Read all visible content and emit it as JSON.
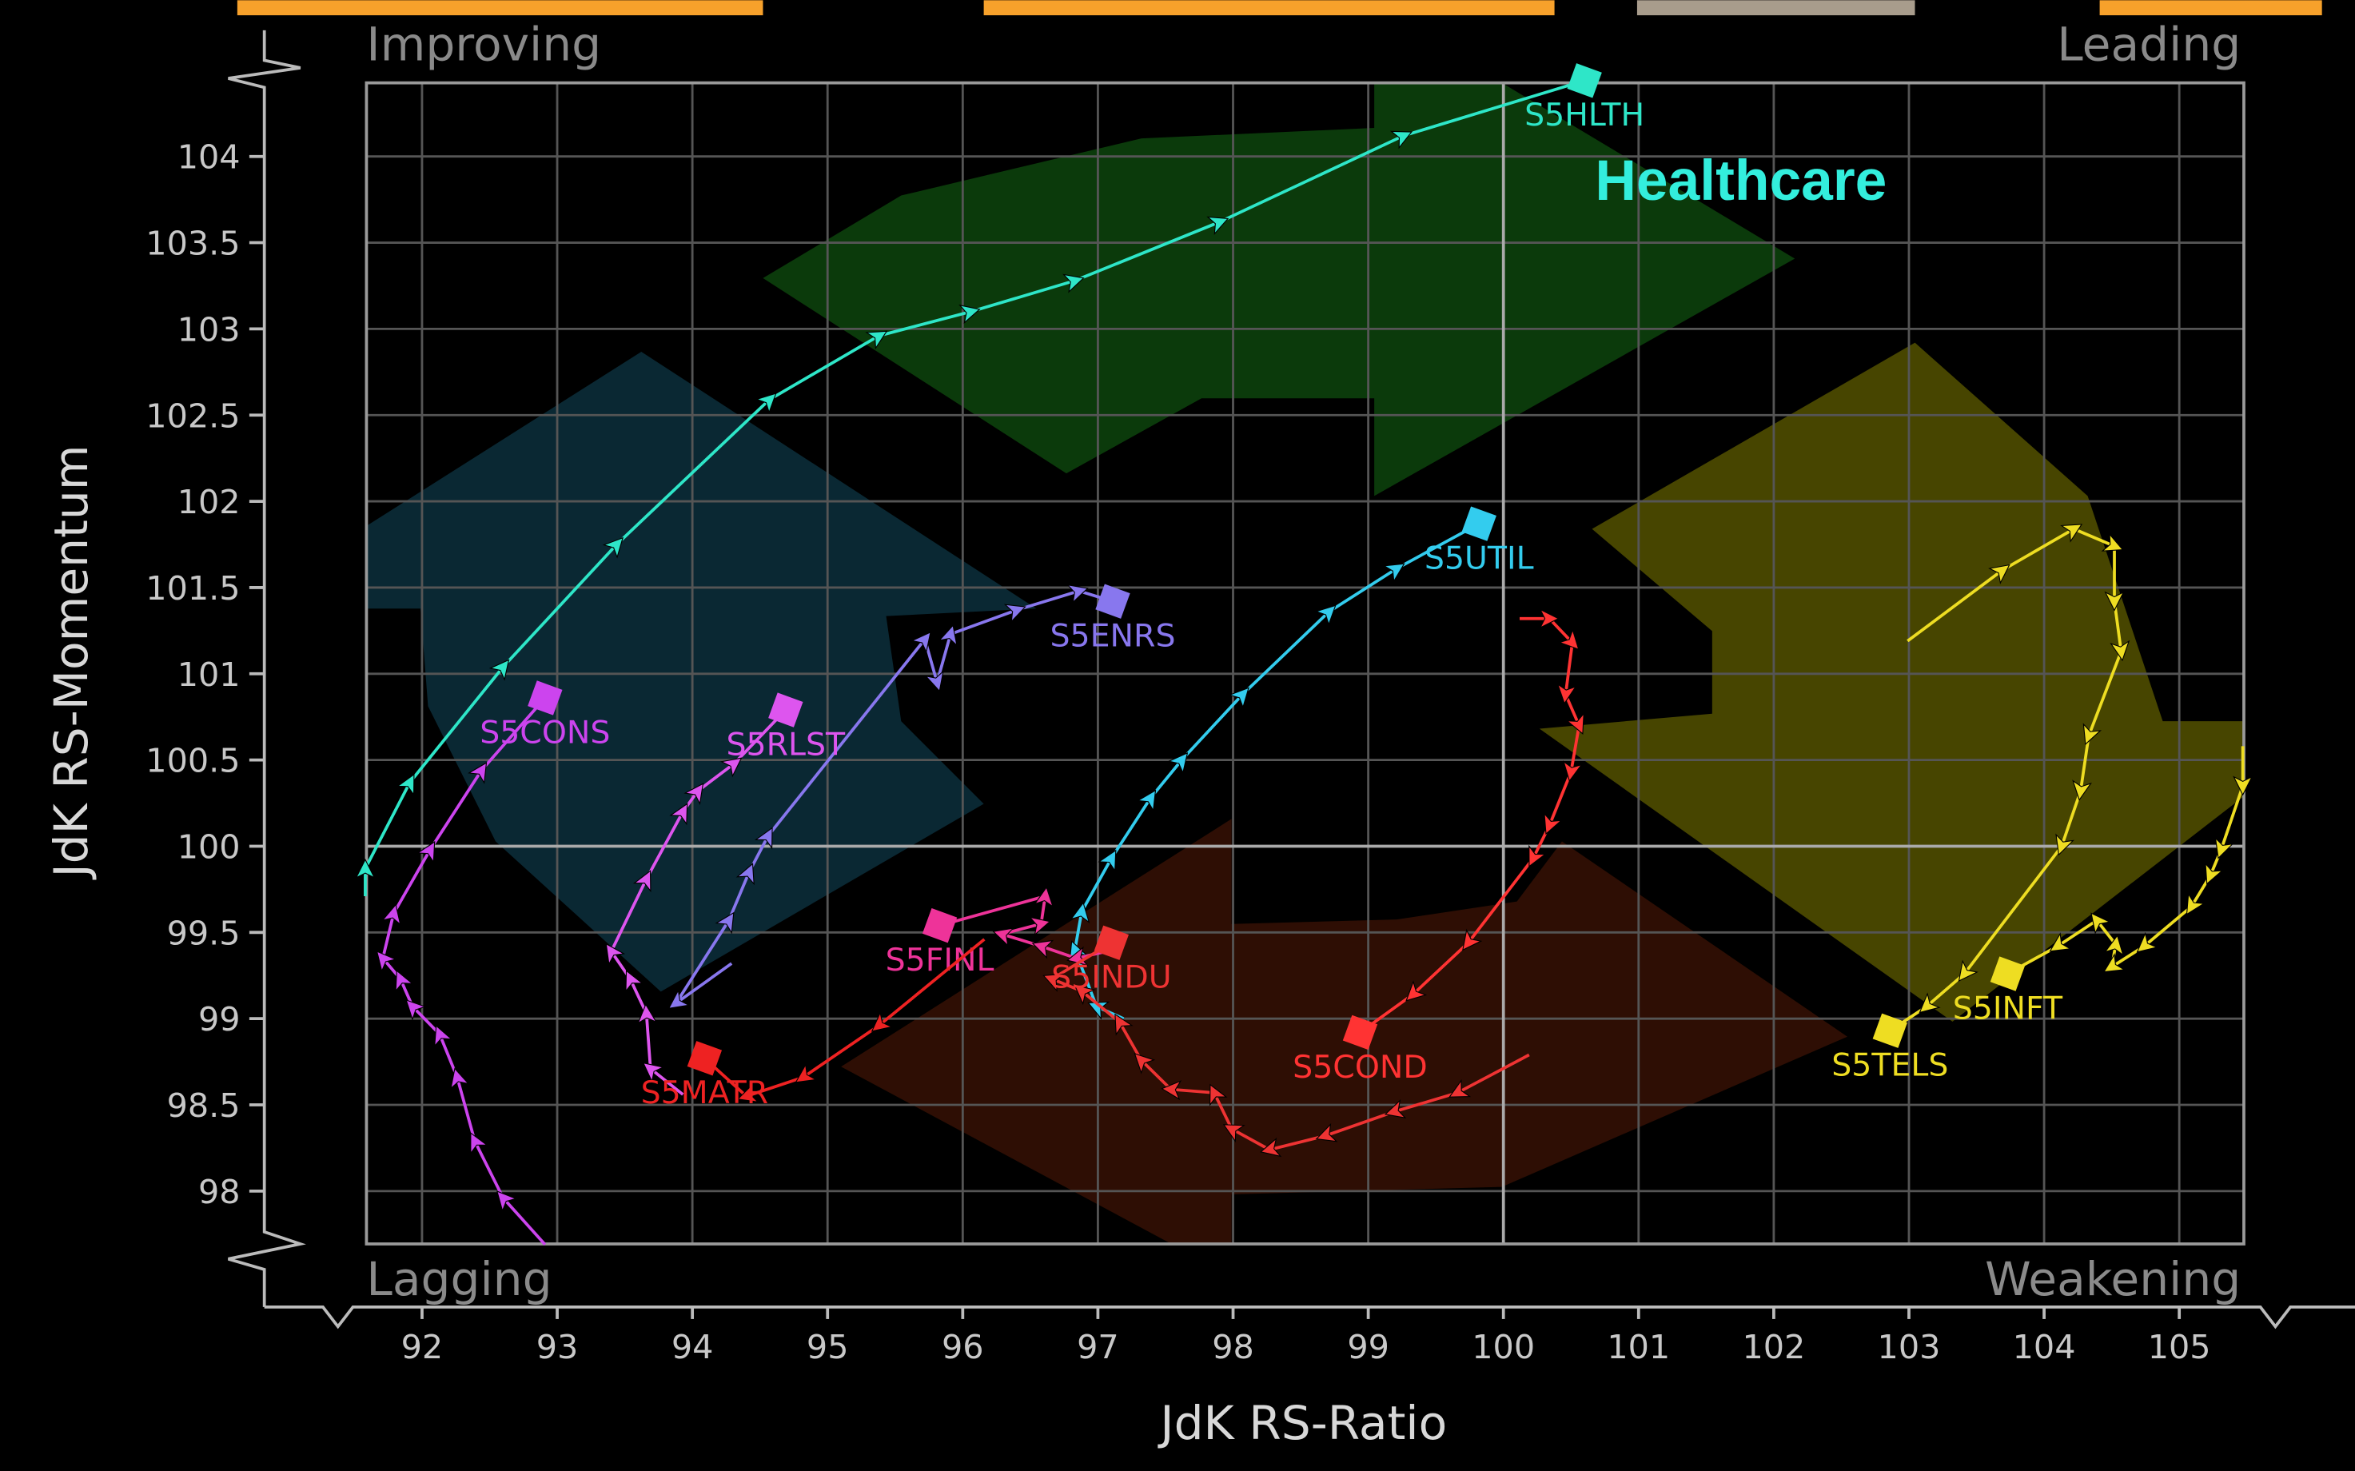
{
  "chart_data": {
    "type": "scatter",
    "subtype": "relative-rotation-graph",
    "xlabel": "JdK RS-Ratio",
    "ylabel": "JdK RS-Momentum",
    "xlim": [
      91.6,
      105.5
    ],
    "ylim": [
      97.7,
      104.45
    ],
    "xticks": [
      92,
      93,
      94,
      95,
      96,
      97,
      98,
      99,
      100,
      101,
      102,
      103,
      104,
      105
    ],
    "yticks": [
      98,
      98.5,
      99,
      99.5,
      100,
      100.5,
      101,
      101.5,
      102,
      102.5,
      103,
      103.5,
      104
    ],
    "center": [
      100,
      100
    ],
    "grid": true,
    "quadrants": {
      "top_left": "Improving",
      "top_right": "Leading",
      "bottom_left": "Lagging",
      "bottom_right": "Weakening"
    },
    "annotation": {
      "text": "Healthcare",
      "color": "#33eedd"
    },
    "series": [
      {
        "name": "S5HLTH",
        "color": "#2ee6c8",
        "points": [
          [
            91.58,
            99.71
          ],
          [
            91.58,
            99.87
          ],
          [
            91.91,
            100.37
          ],
          [
            92.6,
            101.04
          ],
          [
            93.44,
            101.75
          ],
          [
            94.57,
            102.59
          ],
          [
            95.38,
            102.96
          ],
          [
            96.06,
            103.1
          ],
          [
            96.83,
            103.28
          ],
          [
            97.9,
            103.62
          ],
          [
            99.26,
            104.12
          ],
          [
            100.6,
            104.44
          ]
        ]
      },
      {
        "name": "S5UTIL",
        "color": "#33ccee",
        "points": [
          [
            97.19,
            99.0
          ],
          [
            96.99,
            99.07
          ],
          [
            96.83,
            99.4
          ],
          [
            96.88,
            99.62
          ],
          [
            97.1,
            99.93
          ],
          [
            97.39,
            100.28
          ],
          [
            97.62,
            100.5
          ],
          [
            98.07,
            100.88
          ],
          [
            98.71,
            101.36
          ],
          [
            99.21,
            101.61
          ],
          [
            99.82,
            101.87
          ]
        ]
      },
      {
        "name": "S5ENRS",
        "color": "#8877ee",
        "points": [
          [
            94.29,
            99.32
          ],
          [
            93.88,
            99.09
          ],
          [
            94.27,
            99.57
          ],
          [
            94.42,
            99.85
          ],
          [
            94.56,
            100.06
          ],
          [
            95.72,
            101.2
          ],
          [
            95.81,
            100.95
          ],
          [
            95.91,
            101.23
          ],
          [
            96.4,
            101.37
          ],
          [
            96.86,
            101.48
          ],
          [
            97.11,
            101.42
          ]
        ]
      },
      {
        "name": "S5CONS",
        "color": "#cc44ee",
        "points": [
          [
            92.91,
            97.69
          ],
          [
            92.6,
            97.96
          ],
          [
            92.39,
            98.29
          ],
          [
            92.26,
            98.66
          ],
          [
            92.13,
            98.91
          ],
          [
            91.93,
            99.07
          ],
          [
            91.84,
            99.23
          ],
          [
            91.71,
            99.35
          ],
          [
            91.79,
            99.61
          ],
          [
            92.06,
            99.98
          ],
          [
            92.44,
            100.44
          ],
          [
            92.91,
            100.86
          ]
        ]
      },
      {
        "name": "S5RLST",
        "color": "#dd55ee",
        "points": [
          [
            93.93,
            98.56
          ],
          [
            93.69,
            98.71
          ],
          [
            93.66,
            99.03
          ],
          [
            93.54,
            99.23
          ],
          [
            93.4,
            99.39
          ],
          [
            93.66,
            99.81
          ],
          [
            93.93,
            100.2
          ],
          [
            94.04,
            100.32
          ],
          [
            94.31,
            100.48
          ],
          [
            94.69,
            100.79
          ]
        ]
      },
      {
        "name": "S5FINL",
        "color": "#ee3399",
        "points": [
          [
            97.12,
            99.4
          ],
          [
            96.84,
            99.35
          ],
          [
            96.58,
            99.42
          ],
          [
            96.29,
            99.49
          ],
          [
            96.58,
            99.55
          ],
          [
            96.61,
            99.71
          ],
          [
            95.83,
            99.54
          ]
        ]
      },
      {
        "name": "S5INDU",
        "color": "#ee3333",
        "points": [
          [
            100.19,
            98.79
          ],
          [
            99.66,
            98.57
          ],
          [
            99.19,
            98.46
          ],
          [
            98.68,
            98.32
          ],
          [
            98.27,
            98.24
          ],
          [
            97.99,
            98.36
          ],
          [
            97.86,
            98.57
          ],
          [
            97.54,
            98.59
          ],
          [
            97.32,
            98.76
          ],
          [
            97.16,
            98.98
          ],
          [
            96.88,
            99.16
          ],
          [
            96.66,
            99.23
          ],
          [
            97.1,
            99.44
          ]
        ]
      },
      {
        "name": "S5MATR",
        "color": "#ee2222",
        "points": [
          [
            96.16,
            99.46
          ],
          [
            95.38,
            98.96
          ],
          [
            94.82,
            98.66
          ],
          [
            94.4,
            98.55
          ],
          [
            94.09,
            98.77
          ]
        ]
      },
      {
        "name": "S5COND",
        "color": "#ff3333",
        "points": [
          [
            100.12,
            101.32
          ],
          [
            100.34,
            101.32
          ],
          [
            100.51,
            101.18
          ],
          [
            100.46,
            100.88
          ],
          [
            100.56,
            100.7
          ],
          [
            100.5,
            100.43
          ],
          [
            100.34,
            100.12
          ],
          [
            100.22,
            99.93
          ],
          [
            99.74,
            99.44
          ],
          [
            99.33,
            99.14
          ],
          [
            98.94,
            98.92
          ]
        ]
      },
      {
        "name": "S5TELS",
        "color": "#eedd22",
        "points": [
          [
            102.99,
            101.19
          ],
          [
            103.69,
            101.6
          ],
          [
            104.22,
            101.84
          ],
          [
            104.52,
            101.74
          ],
          [
            104.52,
            101.42
          ],
          [
            104.57,
            101.13
          ],
          [
            104.33,
            100.64
          ],
          [
            104.27,
            100.32
          ],
          [
            104.13,
            100.0
          ],
          [
            103.41,
            99.26
          ],
          [
            103.13,
            99.07
          ],
          [
            102.86,
            98.93
          ]
        ]
      },
      {
        "name": "S5INFT",
        "color": "#eedd22",
        "points": [
          [
            105.47,
            100.58
          ],
          [
            105.47,
            100.35
          ],
          [
            105.31,
            99.98
          ],
          [
            105.23,
            99.83
          ],
          [
            105.09,
            99.65
          ],
          [
            104.74,
            99.42
          ],
          [
            104.5,
            99.3
          ],
          [
            104.53,
            99.43
          ],
          [
            104.39,
            99.57
          ],
          [
            104.1,
            99.42
          ],
          [
            103.73,
            99.26
          ]
        ]
      }
    ]
  }
}
